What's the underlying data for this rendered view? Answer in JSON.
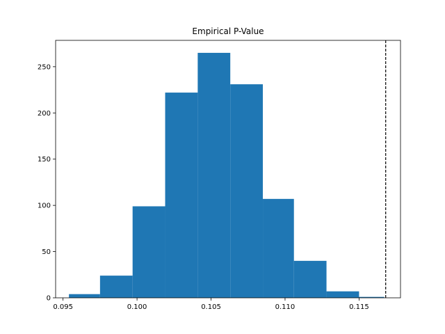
{
  "chart_data": {
    "type": "histogram",
    "title": "Empirical P-Value",
    "xlabel": "",
    "ylabel": "",
    "xlim": [
      0.0945,
      0.1178
    ],
    "ylim": [
      0,
      278.5
    ],
    "bar_color": "#1f77b4",
    "bins": [
      {
        "x0": 0.0954,
        "x1": 0.0975,
        "count": 4
      },
      {
        "x0": 0.0975,
        "x1": 0.0997,
        "count": 24
      },
      {
        "x0": 0.0997,
        "x1": 0.1019,
        "count": 99
      },
      {
        "x0": 0.1019,
        "x1": 0.1041,
        "count": 222
      },
      {
        "x0": 0.1041,
        "x1": 0.1063,
        "count": 265
      },
      {
        "x0": 0.1063,
        "x1": 0.1085,
        "count": 231
      },
      {
        "x0": 0.1085,
        "x1": 0.1106,
        "count": 107
      },
      {
        "x0": 0.1106,
        "x1": 0.1128,
        "count": 40
      },
      {
        "x0": 0.1128,
        "x1": 0.115,
        "count": 7
      },
      {
        "x0": 0.115,
        "x1": 0.1167,
        "count": 1
      }
    ],
    "reference_line": {
      "x": 0.1168,
      "style": "dashed",
      "color": "#000000"
    },
    "x_ticks": [
      {
        "value": 0.095,
        "label": "0.095"
      },
      {
        "value": 0.1,
        "label": "0.100"
      },
      {
        "value": 0.105,
        "label": "0.105"
      },
      {
        "value": 0.11,
        "label": "0.110"
      },
      {
        "value": 0.115,
        "label": "0.115"
      }
    ],
    "y_ticks": [
      {
        "value": 0,
        "label": "0"
      },
      {
        "value": 50,
        "label": "50"
      },
      {
        "value": 100,
        "label": "100"
      },
      {
        "value": 150,
        "label": "150"
      },
      {
        "value": 200,
        "label": "200"
      },
      {
        "value": 250,
        "label": "250"
      }
    ],
    "grid": false,
    "legend": "none"
  }
}
